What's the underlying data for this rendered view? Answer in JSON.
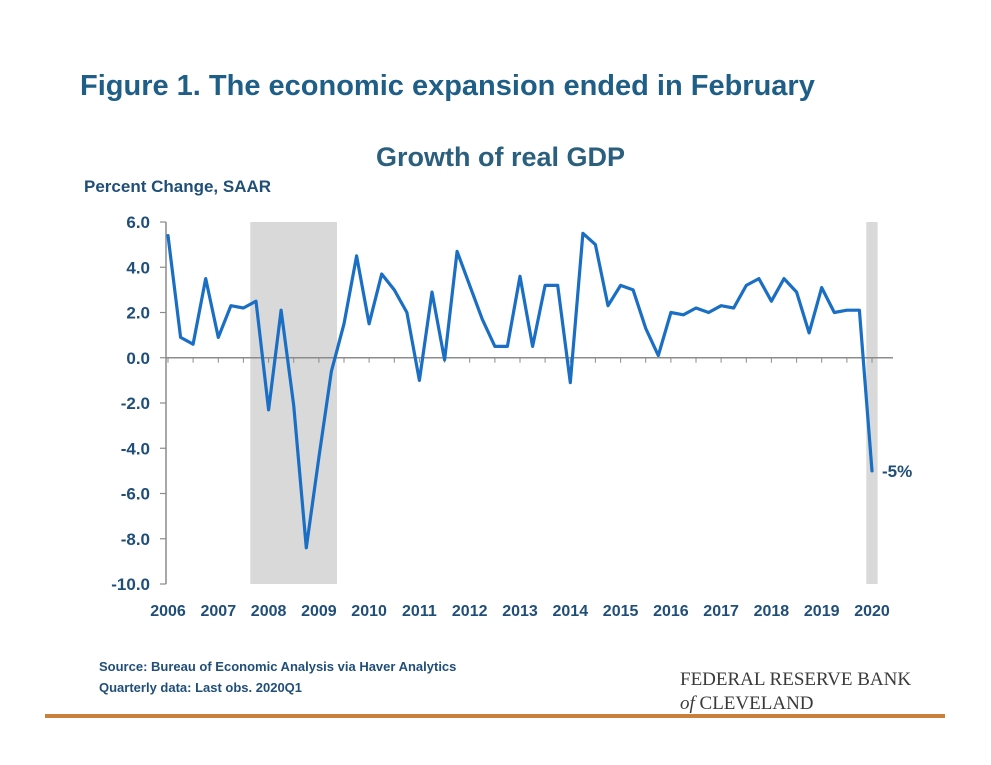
{
  "figure_title": "Figure 1. The economic expansion ended in February",
  "source_lines": [
    "Source: Bureau of Economic Analysis via Haver Analytics",
    "Quarterly data: Last obs. 2020Q1"
  ],
  "logo": {
    "line1": "FEDERAL RESERVE BANK",
    "of": "of",
    "line2": "CLEVELAND"
  },
  "colors": {
    "line": "#1a6fc4",
    "recession": "#d9d9d9",
    "text": "#1f4e79",
    "rule": "#c9803a"
  },
  "chart_data": {
    "type": "line",
    "title": "Growth of real GDP",
    "ylabel": "Percent Change, SAAR",
    "xlabel": "",
    "ylim": [
      -10,
      6
    ],
    "yticks": [
      6,
      4,
      2,
      0,
      -2,
      -4,
      -6,
      -8,
      -10
    ],
    "ytick_labels": [
      "6.0",
      "4.0",
      "2.0",
      "0.0",
      "-2.0",
      "-4.0",
      "-6.0",
      "-8.0",
      "-10.0"
    ],
    "x_labels": [
      "2006",
      "2007",
      "2008",
      "2009",
      "2010",
      "2011",
      "2012",
      "2013",
      "2014",
      "2015",
      "2016",
      "2017",
      "2018",
      "2019",
      "2020"
    ],
    "x_start": "2006Q1",
    "frequency": "quarterly",
    "recessions": [
      [
        "2007Q4",
        "2009Q2"
      ],
      [
        "2020Q1",
        "2020Q1"
      ]
    ],
    "series": [
      {
        "values": [
          5.4,
          0.9,
          0.6,
          3.5,
          0.9,
          2.3,
          2.2,
          2.5,
          -2.3,
          2.1,
          -2.1,
          -8.4,
          -4.4,
          -0.6,
          1.5,
          4.5,
          1.5,
          3.7,
          3.0,
          2.0,
          -1.0,
          2.9,
          -0.1,
          4.7,
          3.2,
          1.7,
          0.5,
          0.5,
          3.6,
          0.5,
          3.2,
          3.2,
          -1.1,
          5.5,
          5.0,
          2.3,
          3.2,
          3.0,
          1.3,
          0.1,
          2.0,
          1.9,
          2.2,
          2.0,
          2.3,
          2.2,
          3.2,
          3.5,
          2.5,
          3.5,
          2.9,
          1.1,
          3.1,
          2.0,
          2.1,
          2.1,
          -5.0
        ]
      }
    ],
    "annotations": [
      {
        "text": "-5%",
        "at": "2020Q1",
        "y": -5.0
      }
    ],
    "grid": false,
    "legend": "none"
  }
}
